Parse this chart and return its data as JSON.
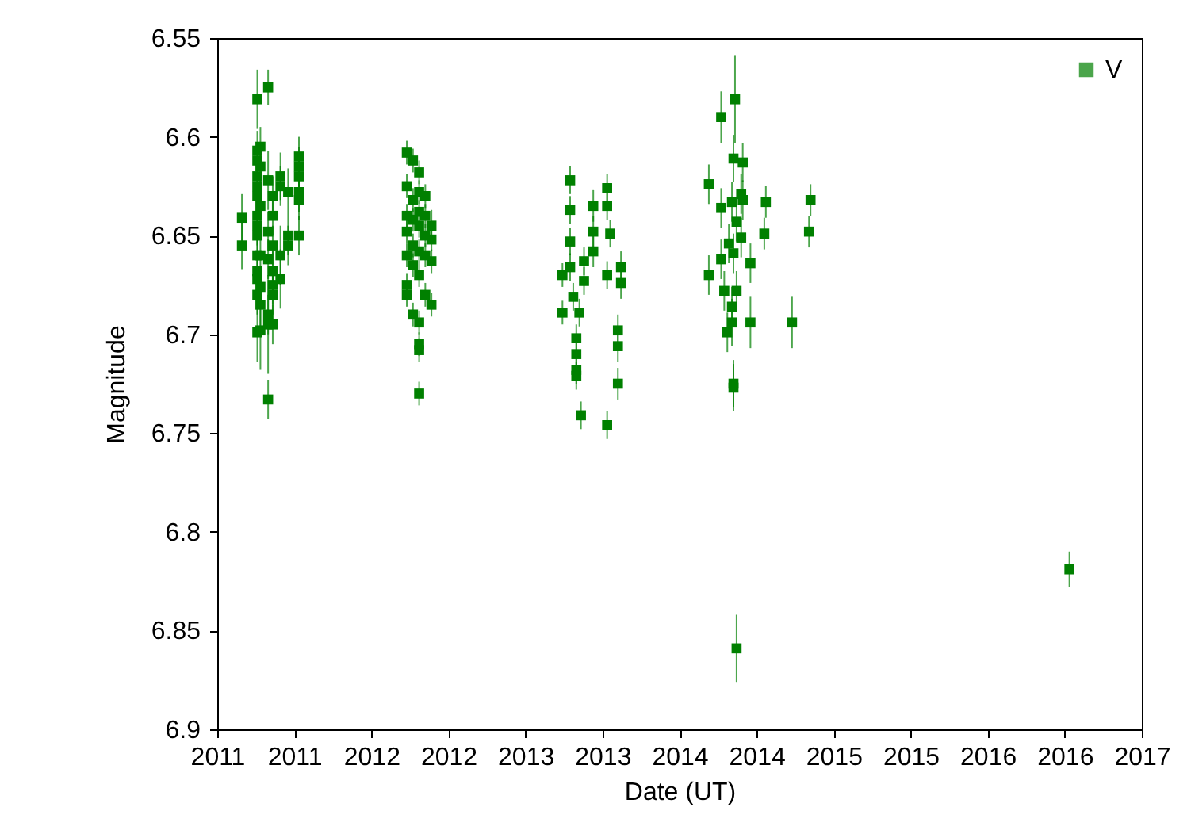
{
  "chart_data": {
    "type": "scatter",
    "xlabel": "Date (UT)",
    "ylabel": "Magnitude",
    "marker": "square",
    "legend": "top right",
    "grid": false,
    "xlim": [
      2011,
      2017
    ],
    "xticks": [
      {
        "value": 2011,
        "label": "2011"
      },
      {
        "value": 2011.5,
        "label": "2011"
      },
      {
        "value": 2012,
        "label": "2012"
      },
      {
        "value": 2012.5,
        "label": "2012"
      },
      {
        "value": 2013,
        "label": "2013"
      },
      {
        "value": 2013.5,
        "label": "2013"
      },
      {
        "value": 2014,
        "label": "2014"
      },
      {
        "value": 2014.5,
        "label": "2014"
      },
      {
        "value": 2015,
        "label": "2015"
      },
      {
        "value": 2015.5,
        "label": "2015"
      },
      {
        "value": 2016,
        "label": "2016"
      },
      {
        "value": 2016.5,
        "label": "2016"
      },
      {
        "value": 2017,
        "label": "2017"
      }
    ],
    "ylim": [
      6.9,
      6.55
    ],
    "yticks": [
      6.55,
      6.6,
      6.65,
      6.7,
      6.75,
      6.8,
      6.85,
      6.9
    ],
    "series": [
      {
        "name": "V",
        "color": "#008000",
        "x": [
          2011.16,
          2011.16,
          2011.26,
          2011.26,
          2011.26,
          2011.26,
          2011.26,
          2011.26,
          2011.26,
          2011.26,
          2011.26,
          2011.26,
          2011.26,
          2011.26,
          2011.26,
          2011.26,
          2011.28,
          2011.28,
          2011.28,
          2011.28,
          2011.28,
          2011.28,
          2011.28,
          2011.33,
          2011.33,
          2011.33,
          2011.33,
          2011.33,
          2011.33,
          2011.33,
          2011.36,
          2011.36,
          2011.36,
          2011.36,
          2011.36,
          2011.36,
          2011.36,
          2011.41,
          2011.41,
          2011.41,
          2011.41,
          2011.46,
          2011.46,
          2011.46,
          2011.53,
          2011.53,
          2011.53,
          2011.53,
          2011.53,
          2011.53,
          2012.23,
          2012.23,
          2012.23,
          2012.23,
          2012.23,
          2012.23,
          2012.23,
          2012.27,
          2012.27,
          2012.27,
          2012.27,
          2012.27,
          2012.27,
          2012.31,
          2012.31,
          2012.31,
          2012.31,
          2012.31,
          2012.31,
          2012.31,
          2012.31,
          2012.31,
          2012.31,
          2012.35,
          2012.35,
          2012.35,
          2012.35,
          2012.35,
          2012.39,
          2012.39,
          2012.39,
          2012.39,
          2013.24,
          2013.24,
          2013.29,
          2013.29,
          2013.29,
          2013.29,
          2013.31,
          2013.33,
          2013.33,
          2013.33,
          2013.33,
          2013.35,
          2013.36,
          2013.38,
          2013.38,
          2013.44,
          2013.44,
          2013.44,
          2013.53,
          2013.53,
          2013.53,
          2013.53,
          2013.55,
          2013.6,
          2013.6,
          2013.6,
          2013.62,
          2013.62,
          2014.19,
          2014.19,
          2014.27,
          2014.27,
          2014.27,
          2014.29,
          2014.32,
          2014.31,
          2014.34,
          2014.34,
          2014.34,
          2014.35,
          2014.35,
          2014.35,
          2014.35,
          2014.36,
          2014.37,
          2014.37,
          2014.37,
          2014.4,
          2014.4,
          2014.41,
          2014.41,
          2014.46,
          2014.46,
          2014.55,
          2014.56,
          2014.73,
          2014.84,
          2014.85,
          2016.53
        ],
        "values": [
          6.641,
          6.655,
          6.581,
          6.607,
          6.612,
          6.62,
          6.625,
          6.63,
          6.64,
          6.645,
          6.65,
          6.66,
          6.668,
          6.672,
          6.68,
          6.699,
          6.605,
          6.615,
          6.635,
          6.66,
          6.676,
          6.685,
          6.698,
          6.575,
          6.622,
          6.648,
          6.662,
          6.695,
          6.733,
          6.69,
          6.63,
          6.64,
          6.655,
          6.668,
          6.675,
          6.68,
          6.695,
          6.62,
          6.625,
          6.66,
          6.672,
          6.628,
          6.65,
          6.655,
          6.615,
          6.61,
          6.62,
          6.632,
          6.65,
          6.628,
          6.608,
          6.625,
          6.64,
          6.648,
          6.66,
          6.675,
          6.68,
          6.612,
          6.632,
          6.642,
          6.655,
          6.665,
          6.69,
          6.618,
          6.628,
          6.638,
          6.645,
          6.658,
          6.67,
          6.705,
          6.708,
          6.73,
          6.694,
          6.63,
          6.64,
          6.65,
          6.66,
          6.68,
          6.645,
          6.652,
          6.663,
          6.685,
          6.67,
          6.689,
          6.622,
          6.637,
          6.653,
          6.666,
          6.681,
          6.702,
          6.721,
          6.71,
          6.718,
          6.689,
          6.741,
          6.663,
          6.673,
          6.635,
          6.648,
          6.658,
          6.626,
          6.635,
          6.67,
          6.746,
          6.649,
          6.698,
          6.706,
          6.725,
          6.666,
          6.674,
          6.624,
          6.67,
          6.59,
          6.636,
          6.662,
          6.678,
          6.654,
          6.699,
          6.633,
          6.686,
          6.694,
          6.611,
          6.725,
          6.727,
          6.659,
          6.581,
          6.643,
          6.678,
          6.859,
          6.629,
          6.651,
          6.613,
          6.632,
          6.664,
          6.694,
          6.649,
          6.633,
          6.694,
          6.648,
          6.632,
          6.819
        ],
        "errors": [
          0.012,
          0.012,
          0.015,
          0.01,
          0.008,
          0.008,
          0.008,
          0.01,
          0.01,
          0.01,
          0.01,
          0.01,
          0.01,
          0.01,
          0.01,
          0.015,
          0.01,
          0.01,
          0.015,
          0.015,
          0.01,
          0.015,
          0.02,
          0.009,
          0.015,
          0.01,
          0.01,
          0.025,
          0.01,
          0.01,
          0.01,
          0.01,
          0.01,
          0.01,
          0.01,
          0.01,
          0.01,
          0.012,
          0.01,
          0.015,
          0.015,
          0.012,
          0.01,
          0.01,
          0.01,
          0.01,
          0.01,
          0.01,
          0.01,
          0.01,
          0.006,
          0.006,
          0.006,
          0.006,
          0.006,
          0.006,
          0.006,
          0.006,
          0.006,
          0.006,
          0.006,
          0.006,
          0.006,
          0.006,
          0.006,
          0.006,
          0.006,
          0.006,
          0.006,
          0.006,
          0.006,
          0.006,
          0.006,
          0.006,
          0.006,
          0.006,
          0.006,
          0.006,
          0.008,
          0.006,
          0.006,
          0.006,
          0.006,
          0.006,
          0.007,
          0.007,
          0.007,
          0.007,
          0.007,
          0.007,
          0.007,
          0.007,
          0.007,
          0.007,
          0.007,
          0.007,
          0.007,
          0.008,
          0.008,
          0.008,
          0.007,
          0.007,
          0.007,
          0.007,
          0.007,
          0.008,
          0.008,
          0.008,
          0.008,
          0.008,
          0.01,
          0.01,
          0.013,
          0.01,
          0.01,
          0.01,
          0.01,
          0.01,
          0.01,
          0.01,
          0.012,
          0.012,
          0.012,
          0.012,
          0.01,
          0.022,
          0.01,
          0.01,
          0.017,
          0.01,
          0.01,
          0.01,
          0.01,
          0.01,
          0.013,
          0.008,
          0.008,
          0.013,
          0.008,
          0.008,
          0.009
        ]
      }
    ]
  }
}
